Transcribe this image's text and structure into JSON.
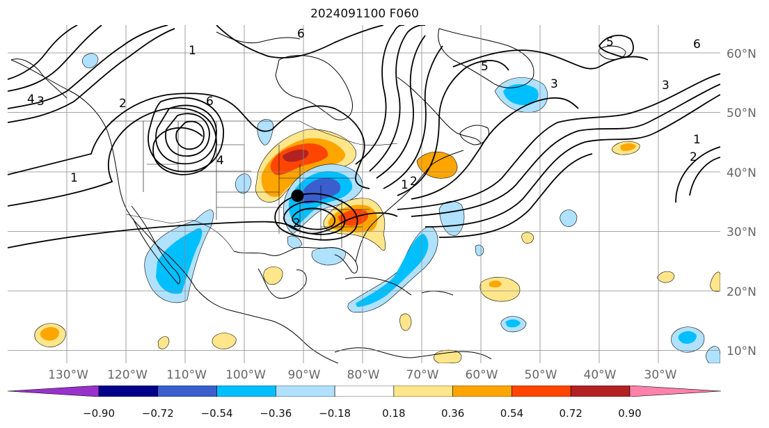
{
  "title": "2024091100 F060",
  "lat_labels": [
    "60°N",
    "50°N",
    "40°N",
    "30°N",
    "20°N",
    "10°N"
  ],
  "lon_labels": [
    "130°W",
    "120°W",
    "110°W",
    "100°W",
    "90°W",
    "80°W",
    "70°W",
    "60°W",
    "50°W",
    "40°W",
    "30°W"
  ],
  "contour_labels": [
    "1",
    "2",
    "3",
    "4",
    "5",
    "6"
  ],
  "colorbar": {
    "ticks": [
      "−0.90",
      "−0.72",
      "−0.54",
      "−0.36",
      "−0.18",
      "0.18",
      "0.36",
      "0.54",
      "0.72",
      "0.90"
    ],
    "colors": [
      "#9932cc",
      "#00008b",
      "#3a5fcd",
      "#00bfff",
      "#b0e2ff",
      "#ffffff",
      "#ffe68a",
      "#ffa500",
      "#ff4500",
      "#b22222",
      "#ff82ab"
    ]
  },
  "marker": {
    "name": "storm-center",
    "lon": -91,
    "lat": 36
  }
}
